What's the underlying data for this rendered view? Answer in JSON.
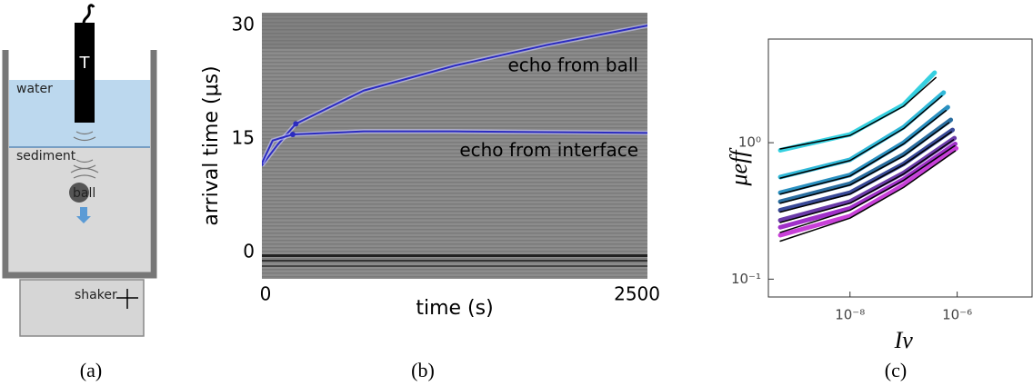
{
  "diagram": {
    "transducer": "T",
    "water": "water",
    "sediment": "sediment",
    "ball": "ball",
    "shaker": "shaker",
    "caption": "(a)"
  },
  "chart_data": [
    {
      "type": "line",
      "caption": "(b)",
      "xlabel": "time (s)",
      "ylabel": "arrival time (μs)",
      "xlim": [
        0,
        2500
      ],
      "xticks": [
        0,
        2500
      ],
      "ylim": [
        -3.5,
        31.7
      ],
      "yticks": [
        0,
        15,
        30
      ],
      "series": [
        {
          "name": "echo from ball",
          "color": "#2b2bc0",
          "x": [
            0,
            100,
            220,
            660,
            1250,
            1840,
            2500
          ],
          "values": [
            11.5,
            14.2,
            17,
            21.4,
            24.7,
            27.4,
            30
          ],
          "marker_x": 220,
          "marker_y": 17
        },
        {
          "name": "echo from interface",
          "color": "#2b2bc0",
          "x": [
            0,
            70,
            200,
            660,
            1250,
            1840,
            2500
          ],
          "values": [
            11.8,
            14.8,
            15.6,
            16,
            16,
            15.9,
            15.8
          ],
          "marker_x": 200,
          "marker_y": 15.6
        }
      ]
    },
    {
      "type": "line",
      "caption": "(c)",
      "xlabel": "Iv",
      "ylabel": "μeff",
      "xscale": "log",
      "yscale": "log",
      "xlim": [
        3e-10,
        2.5e-05
      ],
      "xticks": [
        {
          "value": 1e-08,
          "label": "10⁻⁸"
        },
        {
          "value": 1e-06,
          "label": "10⁻⁶"
        }
      ],
      "ylim": [
        0.074,
        5.75
      ],
      "yticks": [
        {
          "value": 0.1,
          "label": "10⁻¹"
        },
        {
          "value": 1,
          "label": "10⁰"
        }
      ],
      "series": [
        {
          "color": "#35d0e0",
          "x": [
            5e-10,
            1e-08,
            1e-07,
            3.8e-07
          ],
          "values": [
            0.88,
            1.15,
            1.9,
            3.26
          ]
        },
        {
          "color": "#30b8d8",
          "x": [
            5e-10,
            1e-08,
            1e-07,
            5.6e-07
          ],
          "values": [
            0.56,
            0.75,
            1.3,
            2.33
          ]
        },
        {
          "color": "#2a90c0",
          "x": [
            5e-10,
            1e-08,
            1e-07,
            6.7e-07
          ],
          "values": [
            0.43,
            0.58,
            1.0,
            1.82
          ]
        },
        {
          "color": "#2a6ea0",
          "x": [
            5e-10,
            1e-08,
            1e-07,
            7.6e-07
          ],
          "values": [
            0.37,
            0.5,
            0.82,
            1.47
          ]
        },
        {
          "color": "#3a4a98",
          "x": [
            5e-10,
            1e-08,
            1e-07,
            8.2e-07
          ],
          "values": [
            0.32,
            0.43,
            0.7,
            1.24
          ]
        },
        {
          "color": "#6a3aa8",
          "x": [
            5e-10,
            1e-08,
            1e-07,
            8.9e-07
          ],
          "values": [
            0.27,
            0.37,
            0.6,
            1.08
          ]
        },
        {
          "color": "#a030c8",
          "x": [
            5e-10,
            1e-08,
            1e-07,
            9.2e-07
          ],
          "values": [
            0.24,
            0.33,
            0.54,
            0.98
          ]
        },
        {
          "color": "#c840d8",
          "x": [
            5e-10,
            1e-08,
            1e-07,
            9.6e-07
          ],
          "values": [
            0.21,
            0.29,
            0.49,
            0.91
          ]
        }
      ],
      "fits": [
        {
          "color": "#000000",
          "x": [
            5e-10,
            1e-08,
            1e-07,
            4e-07
          ],
          "values": [
            0.9,
            1.13,
            1.85,
            3.0
          ]
        },
        {
          "color": "#000000",
          "x": [
            5e-10,
            1e-08,
            1e-07,
            5.2e-07
          ],
          "values": [
            0.55,
            0.74,
            1.27,
            2.2
          ]
        },
        {
          "color": "#000000",
          "x": [
            5e-10,
            1e-08,
            1e-07,
            6.2e-07
          ],
          "values": [
            0.42,
            0.57,
            0.98,
            1.72
          ]
        },
        {
          "color": "#000000",
          "x": [
            5e-10,
            1e-08,
            1e-07,
            7e-07
          ],
          "values": [
            0.36,
            0.49,
            0.8,
            1.4
          ]
        },
        {
          "color": "#000000",
          "x": [
            5e-10,
            1e-08,
            1e-07,
            7.8e-07
          ],
          "values": [
            0.31,
            0.42,
            0.69,
            1.2
          ]
        },
        {
          "color": "#000000",
          "x": [
            5e-10,
            1e-08,
            1e-07,
            8.5e-07
          ],
          "values": [
            0.26,
            0.36,
            0.59,
            1.05
          ]
        },
        {
          "color": "#000000",
          "x": [
            5e-10,
            1e-08,
            1e-07,
            9e-07
          ],
          "values": [
            0.22,
            0.32,
            0.53,
            0.95
          ]
        },
        {
          "color": "#000000",
          "x": [
            5e-10,
            1e-08,
            1e-07,
            9.2e-07
          ],
          "values": [
            0.19,
            0.28,
            0.47,
            0.87
          ]
        }
      ]
    }
  ]
}
